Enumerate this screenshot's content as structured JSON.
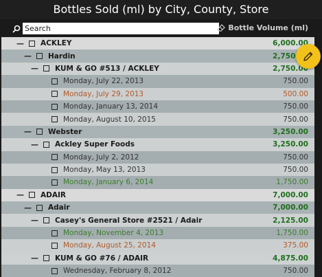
{
  "title": "Bottles Sold (ml) by City, County, Store",
  "search": {
    "placeholder": "Search"
  },
  "column_header": "Bottle Volume (ml)",
  "icons": {
    "search": "search-icon",
    "eraser": "eraser-icon",
    "edit": "pencil-icon"
  },
  "colors": {
    "accent": "#f2c21a",
    "positive": "#1e6e1e",
    "warning": "#b05a2a",
    "good": "#3a7d2a"
  },
  "rows": [
    {
      "label": "ACKLEY",
      "value": "6,000.00",
      "toggle": "—"
    },
    {
      "label": "Hardin",
      "value": "2,750.00",
      "toggle": "—"
    },
    {
      "label": "KUM & GO #513 / ACKLEY",
      "value": "2,750.00",
      "toggle": "—"
    },
    {
      "label": "Monday, July 22, 2013",
      "value": "750.00"
    },
    {
      "label": "Monday, July 29, 2013",
      "value": "500.00"
    },
    {
      "label": "Monday, January 13, 2014",
      "value": "750.00"
    },
    {
      "label": "Monday, August 10, 2015",
      "value": "750.00"
    },
    {
      "label": "Webster",
      "value": "3,250.00",
      "toggle": "—"
    },
    {
      "label": "Ackley Super Foods",
      "value": "3,250.00",
      "toggle": "—"
    },
    {
      "label": "Monday, July 2, 2012",
      "value": "750.00"
    },
    {
      "label": "Monday, May 13, 2013",
      "value": "750.00"
    },
    {
      "label": "Monday, January 6, 2014",
      "value": "1,750.00"
    },
    {
      "label": "ADAIR",
      "value": "7,000.00",
      "toggle": "—"
    },
    {
      "label": "Adair",
      "value": "7,000.00",
      "toggle": "—"
    },
    {
      "label": "Casey's General Store #2521 / Adair",
      "value": "2,125.00",
      "toggle": "—"
    },
    {
      "label": "Monday, November 4, 2013",
      "value": "1,750.00"
    },
    {
      "label": "Monday, August 25, 2014",
      "value": "375.00"
    },
    {
      "label": "KUM & GO #76 / ADAIR",
      "value": "4,875.00",
      "toggle": "—"
    },
    {
      "label": "Wednesday, February 8, 2012",
      "value": "750.00"
    }
  ]
}
